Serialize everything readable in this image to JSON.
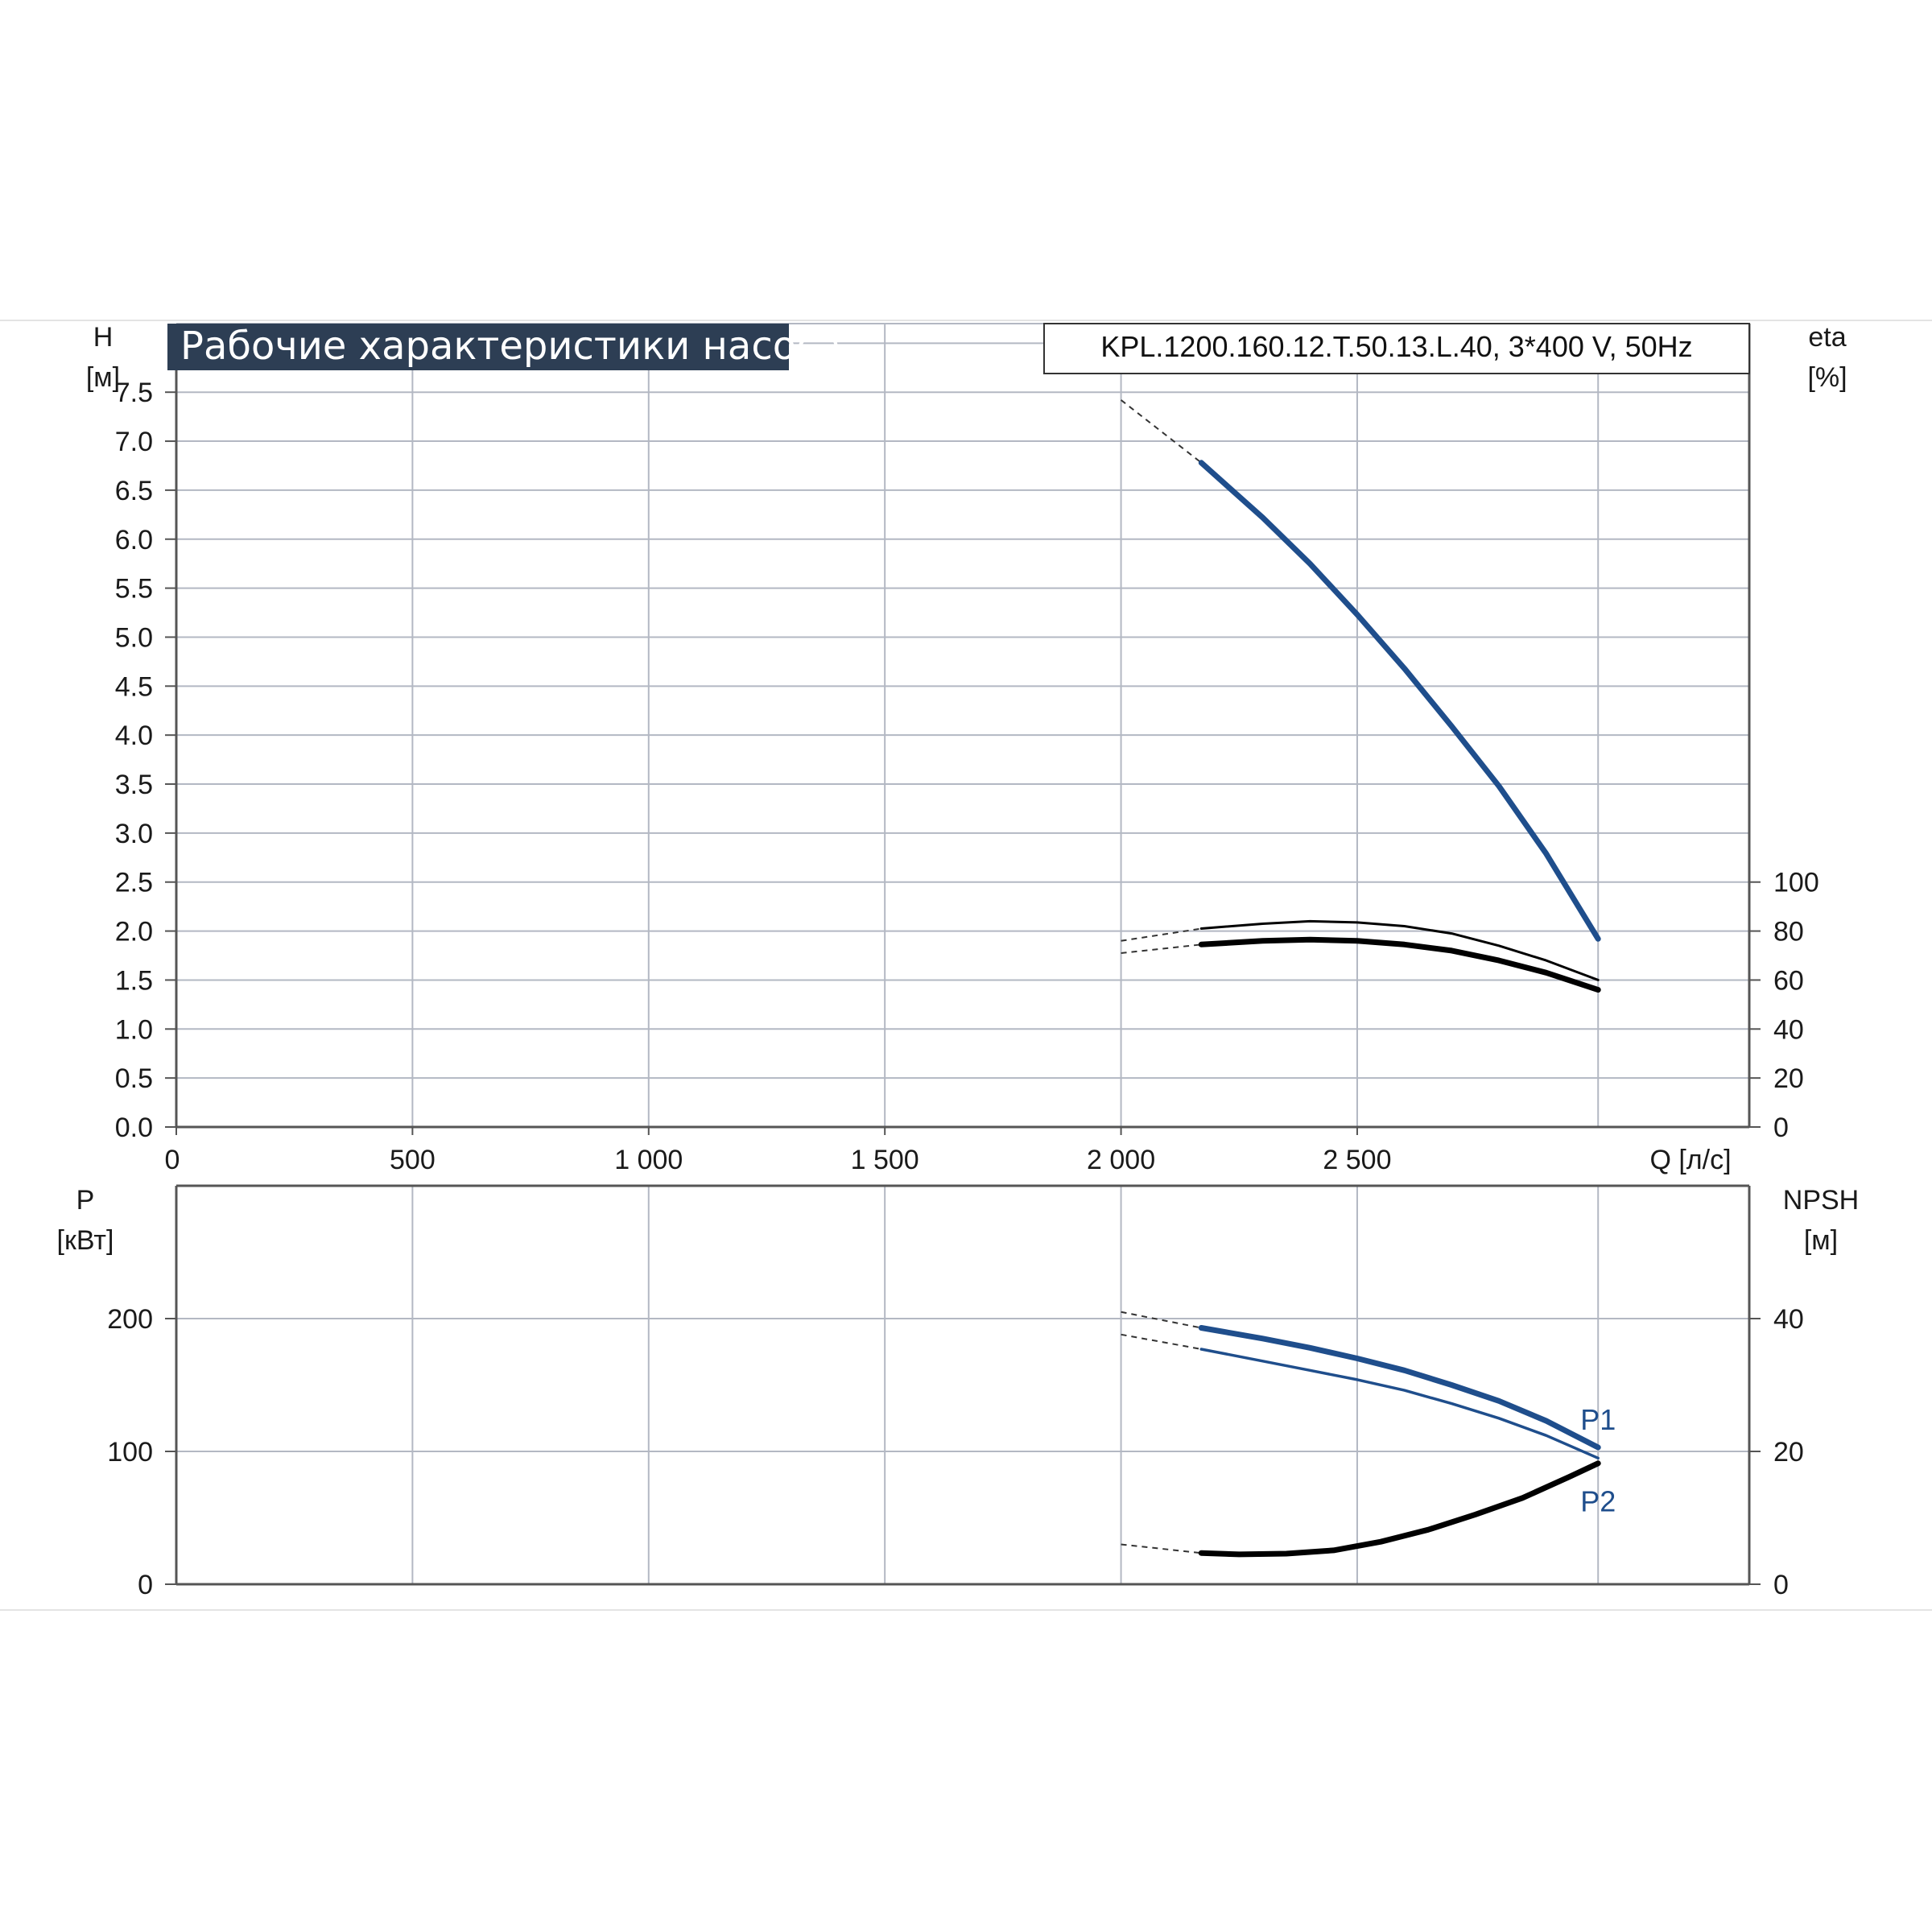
{
  "header": {
    "title": "Рабочие характеристики насоса",
    "model": "KPL.1200.160.12.T.50.13.L.40, 3*400 V, 50Hz"
  },
  "colors": {
    "background": "#ffffff",
    "grid": "#b3b8c3",
    "axis": "#555555",
    "title_bg": "#2d3e54",
    "curve_blue": "#1f4e8c",
    "curve_black": "#000000"
  },
  "top_panel": {
    "left_axis": {
      "label": "H",
      "unit": "[м]"
    },
    "right_axis": {
      "label": "eta",
      "unit": "[%]"
    },
    "x_axis": {
      "label": "Q [л/с]"
    }
  },
  "bottom_panel": {
    "left_axis": {
      "label": "P",
      "unit": "[кВт]"
    },
    "right_axis": {
      "label": "NPSH",
      "unit": "[м]"
    }
  },
  "chart_data": [
    {
      "type": "line",
      "panel": "top",
      "x_ticks": [
        "0",
        "500",
        "1 000",
        "1 500",
        "2 000",
        "2 500"
      ],
      "x_tick_values": [
        0,
        500,
        1000,
        1500,
        2000,
        2500
      ],
      "xlim": [
        0,
        3330
      ],
      "left_ticks": [
        "0.0",
        "0.5",
        "1.0",
        "1.5",
        "2.0",
        "2.5",
        "3.0",
        "3.5",
        "4.0",
        "4.5",
        "5.0",
        "5.5",
        "6.0",
        "6.5",
        "7.0",
        "7.5"
      ],
      "left_tick_values": [
        0,
        0.5,
        1,
        1.5,
        2,
        2.5,
        3,
        3.5,
        4,
        4.5,
        5,
        5.5,
        6,
        6.5,
        7,
        7.5
      ],
      "ylim_left": [
        0,
        8.2
      ],
      "right_ticks": [
        "0",
        "20",
        "40",
        "60",
        "80",
        "100"
      ],
      "right_tick_values": [
        0,
        20,
        40,
        60,
        80,
        100
      ],
      "ylim_right": [
        0,
        328
      ],
      "grid": true,
      "series": [
        {
          "axis": "left",
          "style": "thick-blue",
          "dashed": {
            "x": [
              2000,
              2170
            ],
            "y": [
              7.42,
              6.78
            ]
          },
          "x": [
            2170,
            2300,
            2400,
            2500,
            2600,
            2700,
            2800,
            2900,
            3010
          ],
          "y": [
            6.78,
            6.22,
            5.75,
            5.23,
            4.68,
            4.09,
            3.48,
            2.79,
            1.92
          ]
        },
        {
          "axis": "right",
          "style": "thin-black",
          "dashed": {
            "x": [
              2000,
              2170
            ],
            "y": [
              76,
              81
            ]
          },
          "x": [
            2170,
            2300,
            2400,
            2500,
            2600,
            2700,
            2800,
            2900,
            3010
          ],
          "y": [
            81,
            83,
            84,
            83.5,
            82,
            79,
            74,
            68,
            60
          ]
        },
        {
          "axis": "right",
          "style": "thick-black",
          "dashed": {
            "x": [
              2000,
              2170
            ],
            "y": [
              71,
              74.5
            ]
          },
          "x": [
            2170,
            2300,
            2400,
            2500,
            2600,
            2700,
            2800,
            2900,
            3010
          ],
          "y": [
            74.5,
            76,
            76.5,
            76,
            74.5,
            72,
            68,
            63,
            56
          ]
        }
      ]
    },
    {
      "type": "line",
      "panel": "bottom",
      "x_tick_values": [
        0,
        500,
        1000,
        1500,
        2000,
        2500
      ],
      "xlim": [
        0,
        3330
      ],
      "left_ticks": [
        "0",
        "100",
        "200"
      ],
      "left_tick_values": [
        0,
        100,
        200
      ],
      "ylim_left": [
        0,
        300
      ],
      "right_ticks": [
        "0",
        "20",
        "40"
      ],
      "right_tick_values": [
        0,
        20,
        40
      ],
      "ylim_right": [
        0,
        60
      ],
      "grid": true,
      "series": [
        {
          "name": "P1",
          "axis": "left",
          "style": "thick-blue",
          "dashed": {
            "x": [
              2000,
              2170
            ],
            "y": [
              205,
              193
            ]
          },
          "x": [
            2170,
            2300,
            2400,
            2500,
            2600,
            2700,
            2800,
            2900,
            3010
          ],
          "y": [
            193,
            185,
            178,
            170,
            161,
            150,
            138,
            123,
            103
          ]
        },
        {
          "name": "P2",
          "axis": "left",
          "style": "thin-blue",
          "dashed": {
            "x": [
              2000,
              2170
            ],
            "y": [
              188,
              177
            ]
          },
          "x": [
            2170,
            2300,
            2400,
            2500,
            2600,
            2700,
            2800,
            2900,
            3010
          ],
          "y": [
            177,
            168,
            161,
            154,
            146,
            136,
            125,
            112,
            95
          ]
        },
        {
          "axis": "right",
          "style": "thick-black",
          "dashed": {
            "x": [
              2000,
              2170
            ],
            "y": [
              6,
              4.7
            ]
          },
          "x": [
            2170,
            2250,
            2350,
            2450,
            2550,
            2650,
            2750,
            2850,
            2950,
            3010
          ],
          "y": [
            4.7,
            4.5,
            4.6,
            5.1,
            6.4,
            8.2,
            10.5,
            13.0,
            16.2,
            18.2
          ]
        }
      ]
    }
  ]
}
